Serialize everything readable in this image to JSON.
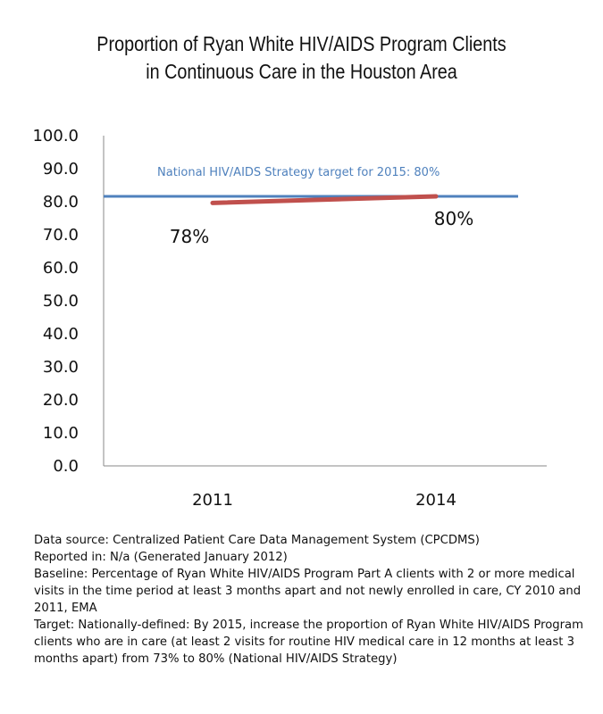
{
  "colors": {
    "target_line": "#4f81bd",
    "series_line": "#c0504d",
    "axis": "#888888"
  },
  "chart_data": {
    "type": "line",
    "title": "Proportion of Ryan White HIV/AIDS Program Clients in Continuous Care in the Houston Area",
    "categories": [
      "2011",
      "2014"
    ],
    "series": [
      {
        "values": [
          78,
          80
        ],
        "data_labels": [
          "78%",
          "80%"
        ]
      }
    ],
    "reference_line": {
      "value": 80,
      "label": "National HIV/AIDS Strategy target for 2015: 80%"
    },
    "ylim": [
      0,
      100
    ],
    "yticks": [
      "0.0",
      "10.0",
      "20.0",
      "30.0",
      "40.0",
      "50.0",
      "60.0",
      "70.0",
      "80.0",
      "90.0",
      "100.0"
    ],
    "xlabel": "",
    "ylabel": "",
    "grid": false
  },
  "notes": {
    "data_source": "Data source: Centralized Patient Care Data Management System (CPCDMS)",
    "reported_in": "Reported in: N/a (Generated January 2012)",
    "baseline": "Baseline: Percentage of Ryan White HIV/AIDS Program Part A clients with 2 or more medical visits in the time period at least 3 months apart and not newly enrolled in care, CY 2010 and 2011, EMA",
    "target": "Target: Nationally-defined: By 2015, increase the proportion of Ryan White HIV/AIDS Program clients who are in care (at least 2 visits for routine HIV medical care in 12 months at least 3 months apart) from 73% to 80% (National HIV/AIDS Strategy)"
  }
}
